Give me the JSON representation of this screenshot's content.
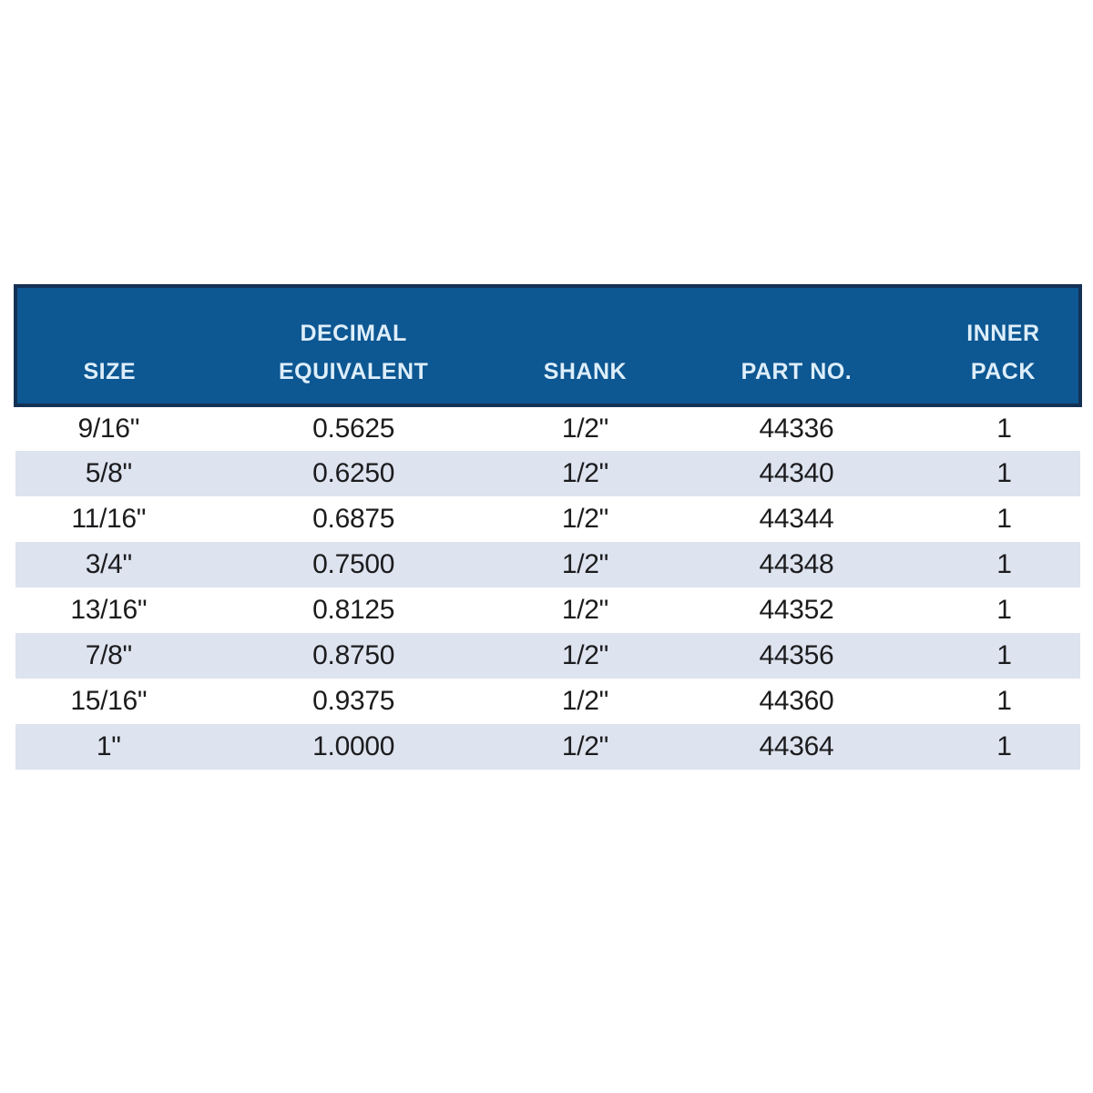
{
  "colors": {
    "header_bg": "#0d5792",
    "header_border": "#143155",
    "header_text": "#ddeefa",
    "row_alt": "#dde3ef",
    "body_text": "#1c1c1e"
  },
  "table": {
    "columns": [
      {
        "key": "size",
        "label": "SIZE"
      },
      {
        "key": "decimal-equivalent",
        "label": "DECIMAL\nEQUIVALENT"
      },
      {
        "key": "shank",
        "label": "SHANK"
      },
      {
        "key": "part-no",
        "label": "PART NO."
      },
      {
        "key": "inner-pack",
        "label": "INNER\nPACK"
      }
    ],
    "rows": [
      [
        "9/16\"",
        "0.5625",
        "1/2\"",
        "44336",
        "1"
      ],
      [
        "5/8\"",
        "0.6250",
        "1/2\"",
        "44340",
        "1"
      ],
      [
        "11/16\"",
        "0.6875",
        "1/2\"",
        "44344",
        "1"
      ],
      [
        "3/4\"",
        "0.7500",
        "1/2\"",
        "44348",
        "1"
      ],
      [
        "13/16\"",
        "0.8125",
        "1/2\"",
        "44352",
        "1"
      ],
      [
        "7/8\"",
        "0.8750",
        "1/2\"",
        "44356",
        "1"
      ],
      [
        "15/16\"",
        "0.9375",
        "1/2\"",
        "44360",
        "1"
      ],
      [
        "1\"",
        "1.0000",
        "1/2\"",
        "44364",
        "1"
      ]
    ]
  }
}
